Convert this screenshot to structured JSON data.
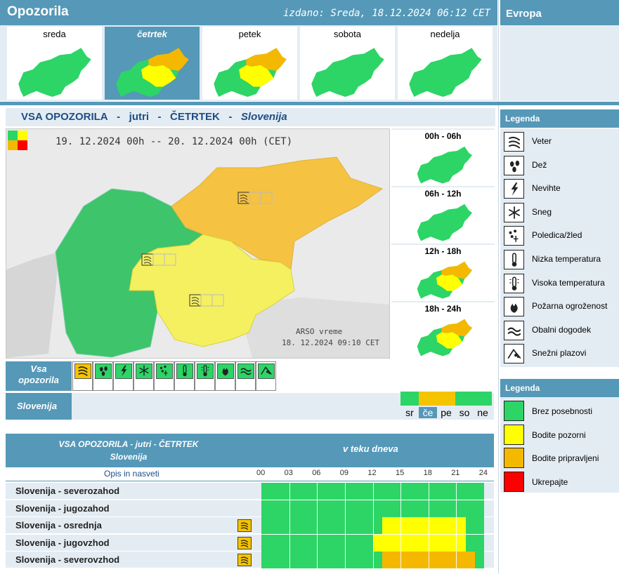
{
  "header": {
    "title": "Opozorila",
    "issued": "izdano: Sreda, 18.12.2024 06:12 CET",
    "europe": "Evropa"
  },
  "days": [
    {
      "label": "sreda",
      "selected": false,
      "level": "green"
    },
    {
      "label": "četrtek",
      "selected": true,
      "level": "orange"
    },
    {
      "label": "petek",
      "selected": false,
      "level": "orange"
    },
    {
      "label": "sobota",
      "selected": false,
      "level": "green"
    },
    {
      "label": "nedelja",
      "selected": false,
      "level": "green"
    }
  ],
  "main": {
    "title_a": "VSA OPOZORILA",
    "title_sep1": "-",
    "title_b": "jutri",
    "title_sep2": "-",
    "title_c": "ČETRTEK",
    "title_sep3": "-",
    "title_d": "Slovenija",
    "map_period": "19. 12.2024  00h  --  20. 12.2024  00h     (CET)",
    "credit": "ARSO vreme",
    "credit_date": "18. 12.2024  09:10 CET"
  },
  "slots": [
    {
      "label": "00h - 06h",
      "level": "green"
    },
    {
      "label": "06h - 12h",
      "level": "green"
    },
    {
      "label": "12h - 18h",
      "level": "mixed"
    },
    {
      "label": "18h - 24h",
      "level": "mixed"
    }
  ],
  "filters": {
    "all_label_1": "Vsa",
    "all_label_2": "opozorila",
    "icons": [
      {
        "name": "wind-icon",
        "active": true
      },
      {
        "name": "rain-icon",
        "active": false
      },
      {
        "name": "thunderstorm-icon",
        "active": false
      },
      {
        "name": "snow-icon",
        "active": false
      },
      {
        "name": "ice-icon",
        "active": false
      },
      {
        "name": "low-temp-icon",
        "active": false
      },
      {
        "name": "high-temp-icon",
        "active": false
      },
      {
        "name": "fire-icon",
        "active": false
      },
      {
        "name": "coastal-icon",
        "active": false
      },
      {
        "name": "avalanche-icon",
        "active": false
      }
    ]
  },
  "region_row": {
    "label": "Slovenija",
    "days": [
      {
        "label": "sr",
        "color": "#2cd566",
        "selected": false
      },
      {
        "label": "če",
        "color": "#f5c400",
        "selected": true
      },
      {
        "label": "pe",
        "color": "#f5c400",
        "selected": false
      },
      {
        "label": "so",
        "color": "#2cd566",
        "selected": false
      },
      {
        "label": "ne",
        "color": "#2cd566",
        "selected": false
      }
    ]
  },
  "table": {
    "head_1": "VSA OPOZORILA - jutri - ČETRTEK",
    "head_2": "Slovenija",
    "head_right": "v teku dneva",
    "opis": "Opis in nasveti",
    "hours": [
      "00",
      "03",
      "06",
      "09",
      "12",
      "15",
      "18",
      "21",
      "24"
    ],
    "rows": [
      {
        "label": "Slovenija - severozahod",
        "wind": false,
        "from": 0,
        "to": 0,
        "color": ""
      },
      {
        "label": "Slovenija - jugozahod",
        "wind": false,
        "from": 0,
        "to": 0,
        "color": ""
      },
      {
        "label": "Slovenija - osrednja",
        "wind": true,
        "from": 13,
        "to": 22,
        "color": "#ffff00"
      },
      {
        "label": "Slovenija - jugovzhod",
        "wind": true,
        "from": 12,
        "to": 22,
        "color": "#ffff00"
      },
      {
        "label": "Slovenija - severovzhod",
        "wind": true,
        "from": 13,
        "to": 23,
        "color": "#f5b800"
      }
    ]
  },
  "legend1": {
    "title": "Legenda",
    "items": [
      {
        "icon": "wind-icon",
        "label": "Veter"
      },
      {
        "icon": "rain-icon",
        "label": "Dež"
      },
      {
        "icon": "thunderstorm-icon",
        "label": "Nevihte"
      },
      {
        "icon": "snow-icon",
        "label": "Sneg"
      },
      {
        "icon": "ice-icon",
        "label": "Poledica/žled"
      },
      {
        "icon": "low-temp-icon",
        "label": "Nizka temperatura"
      },
      {
        "icon": "high-temp-icon",
        "label": "Visoka temperatura"
      },
      {
        "icon": "fire-icon",
        "label": "Požarna ogroženost"
      },
      {
        "icon": "coastal-icon",
        "label": "Obalni dogodek"
      },
      {
        "icon": "avalanche-icon",
        "label": "Snežni plazovi"
      }
    ]
  },
  "legend2": {
    "title": "Legenda",
    "items": [
      {
        "color": "#2cd566",
        "label": "Brez posebnosti"
      },
      {
        "color": "#ffff00",
        "label": "Bodite pozorni"
      },
      {
        "color": "#f5b800",
        "label": "Bodite pripravljeni"
      },
      {
        "color": "#ff0000",
        "label": "Ukrepajte"
      }
    ]
  },
  "colors": {
    "green": "#2cd566",
    "yellow": "#ffff00",
    "orange": "#f5b800",
    "red": "#ff0000",
    "header": "#5598b8"
  }
}
